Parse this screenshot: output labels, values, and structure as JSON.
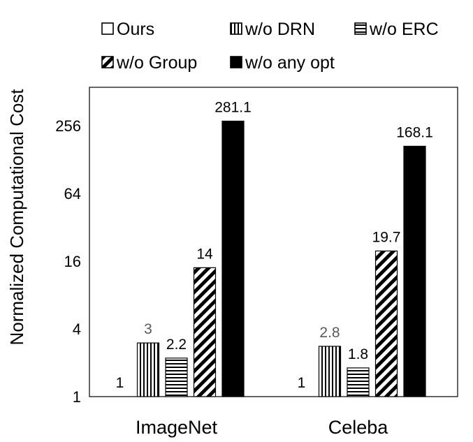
{
  "chart_data": {
    "type": "bar",
    "title": "",
    "xlabel": "",
    "ylabel": "Normalized Computational Cost",
    "yscale": "log2",
    "ylim": [
      1,
      512
    ],
    "yticks": [
      1,
      4,
      16,
      64,
      256
    ],
    "ytick_labels": [
      "1",
      "4",
      "16",
      "64",
      "256"
    ],
    "grid": false,
    "legend_position": "top",
    "categories": [
      "ImageNet",
      "Celeba"
    ],
    "series": [
      {
        "name": "Ours",
        "pattern": "empty",
        "values": [
          1,
          1
        ],
        "labels": [
          "1",
          "1"
        ]
      },
      {
        "name": "w/o DRN",
        "pattern": "vertical-lines",
        "values": [
          3,
          2.8
        ],
        "labels": [
          "3",
          "2.8"
        ]
      },
      {
        "name": "w/o ERC",
        "pattern": "horizontal-lines",
        "values": [
          2.2,
          1.8
        ],
        "labels": [
          "2.2",
          "1.8"
        ]
      },
      {
        "name": "w/o Group",
        "pattern": "diagonal-stripes",
        "values": [
          14,
          19.7
        ],
        "labels": [
          "14",
          "19.7"
        ]
      },
      {
        "name": "w/o any opt",
        "pattern": "solid-black",
        "values": [
          281.1,
          168.1
        ],
        "labels": [
          "281.1",
          "168.1"
        ]
      }
    ],
    "colors": {
      "bar_fill": "#000000",
      "bar_stroke": "#000000",
      "label_gray": "#595959",
      "axis": "#000000"
    }
  }
}
